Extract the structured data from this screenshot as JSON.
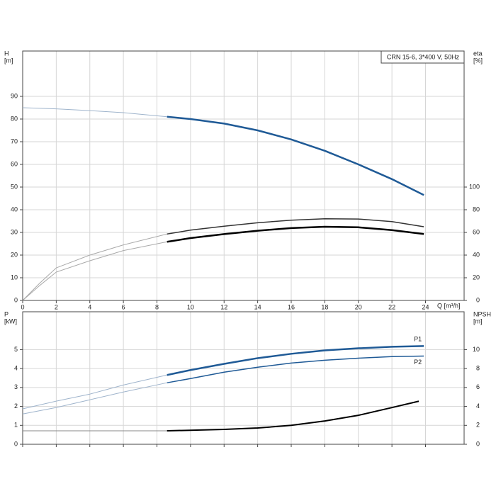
{
  "chart_data": [
    {
      "type": "line",
      "title": "CRN 15-6, 3*400 V, 50Hz",
      "ylabel": [
        "H",
        "[m]"
      ],
      "y2label": [
        "eta",
        "[%]"
      ],
      "xlabel": "Q [m³/h]",
      "xlim": [
        0,
        26.3
      ],
      "xticks": [
        0,
        2,
        4,
        6,
        8,
        10,
        12,
        14,
        16,
        18,
        20,
        22,
        24
      ],
      "ylim": [
        0,
        110
      ],
      "yticks": [
        0,
        10,
        20,
        30,
        40,
        50,
        60,
        70,
        80,
        90
      ],
      "y2lim": [
        0,
        220
      ],
      "y2ticks": [
        0,
        20,
        40,
        60,
        80,
        100
      ],
      "grid": true,
      "series": [
        {
          "color": "#9fb4cc",
          "width": 1,
          "x": [
            0,
            2,
            4,
            6,
            8.6
          ],
          "values": [
            85,
            84.5,
            83.7,
            82.8,
            81
          ]
        },
        {
          "color": "#1f5a96",
          "width": 2.5,
          "x": [
            8.6,
            10,
            12,
            14,
            16,
            18,
            20,
            22,
            23.9
          ],
          "values": [
            81,
            80,
            78,
            75,
            71,
            66,
            60,
            53.5,
            46.5
          ]
        },
        {
          "color": "#aaaaaa",
          "width": 1,
          "axis": "y2",
          "x": [
            0,
            1,
            2,
            4,
            6,
            8.6
          ],
          "values": [
            0,
            15,
            28.7,
            40,
            49,
            58.6
          ]
        },
        {
          "color": "#333333",
          "width": 1.5,
          "axis": "y2",
          "x": [
            8.6,
            10,
            12,
            14,
            16,
            18,
            20,
            22,
            23.9
          ],
          "values": [
            58.6,
            62,
            65.5,
            68.5,
            70.8,
            72,
            71.8,
            69.5,
            65
          ]
        },
        {
          "color": "#aaaaaa",
          "width": 1,
          "axis": "y2",
          "x": [
            0,
            1,
            2,
            4,
            6,
            8.6
          ],
          "values": [
            0,
            13,
            25,
            35,
            44,
            51.7
          ]
        },
        {
          "color": "#000000",
          "width": 2.5,
          "axis": "y2",
          "x": [
            8.6,
            10,
            12,
            14,
            16,
            18,
            20,
            22,
            23.9
          ],
          "values": [
            51.7,
            55,
            58.5,
            61.5,
            63.8,
            65,
            64.5,
            62,
            58.6
          ]
        }
      ]
    },
    {
      "type": "line",
      "ylabel": [
        "P",
        "[kW]"
      ],
      "y2label": [
        "NPSH",
        "[m]"
      ],
      "xlim": [
        0,
        26.3
      ],
      "ylim": [
        0,
        7
      ],
      "yticks": [
        0,
        1,
        2,
        3,
        4,
        5
      ],
      "y2lim": [
        0,
        14
      ],
      "y2ticks": [
        0,
        2,
        4,
        6,
        8,
        10
      ],
      "grid": true,
      "series": [
        {
          "color": "#9fb4cc",
          "width": 1,
          "x": [
            0,
            2,
            4,
            6,
            8.6
          ],
          "values": [
            1.87,
            2.28,
            2.65,
            3.13,
            3.66
          ]
        },
        {
          "name": "P1",
          "color": "#1f5a96",
          "width": 2.5,
          "x": [
            8.6,
            10,
            12,
            14,
            16,
            18,
            20,
            22,
            23.9
          ],
          "values": [
            3.66,
            3.92,
            4.25,
            4.55,
            4.78,
            4.96,
            5.07,
            5.15,
            5.19
          ]
        },
        {
          "color": "#9fb4cc",
          "width": 1,
          "x": [
            0,
            2,
            4,
            6,
            8.6
          ],
          "values": [
            1.6,
            1.94,
            2.35,
            2.76,
            3.25
          ]
        },
        {
          "name": "P2",
          "color": "#1f5a96",
          "width": 1.5,
          "x": [
            8.6,
            10,
            12,
            14,
            16,
            18,
            20,
            22,
            23.9
          ],
          "values": [
            3.25,
            3.47,
            3.81,
            4.07,
            4.29,
            4.44,
            4.55,
            4.63,
            4.66
          ]
        },
        {
          "color": "#888888",
          "width": 1,
          "axis": "y2",
          "x": [
            0,
            2,
            4,
            6,
            8.6
          ],
          "values": [
            1.42,
            1.42,
            1.42,
            1.42,
            1.42
          ]
        },
        {
          "color": "#000000",
          "width": 2,
          "axis": "y2",
          "x": [
            8.6,
            12,
            14,
            16,
            18,
            20,
            22,
            23.6
          ],
          "values": [
            1.42,
            1.57,
            1.72,
            2.0,
            2.46,
            3.06,
            3.88,
            4.55
          ]
        }
      ]
    }
  ]
}
